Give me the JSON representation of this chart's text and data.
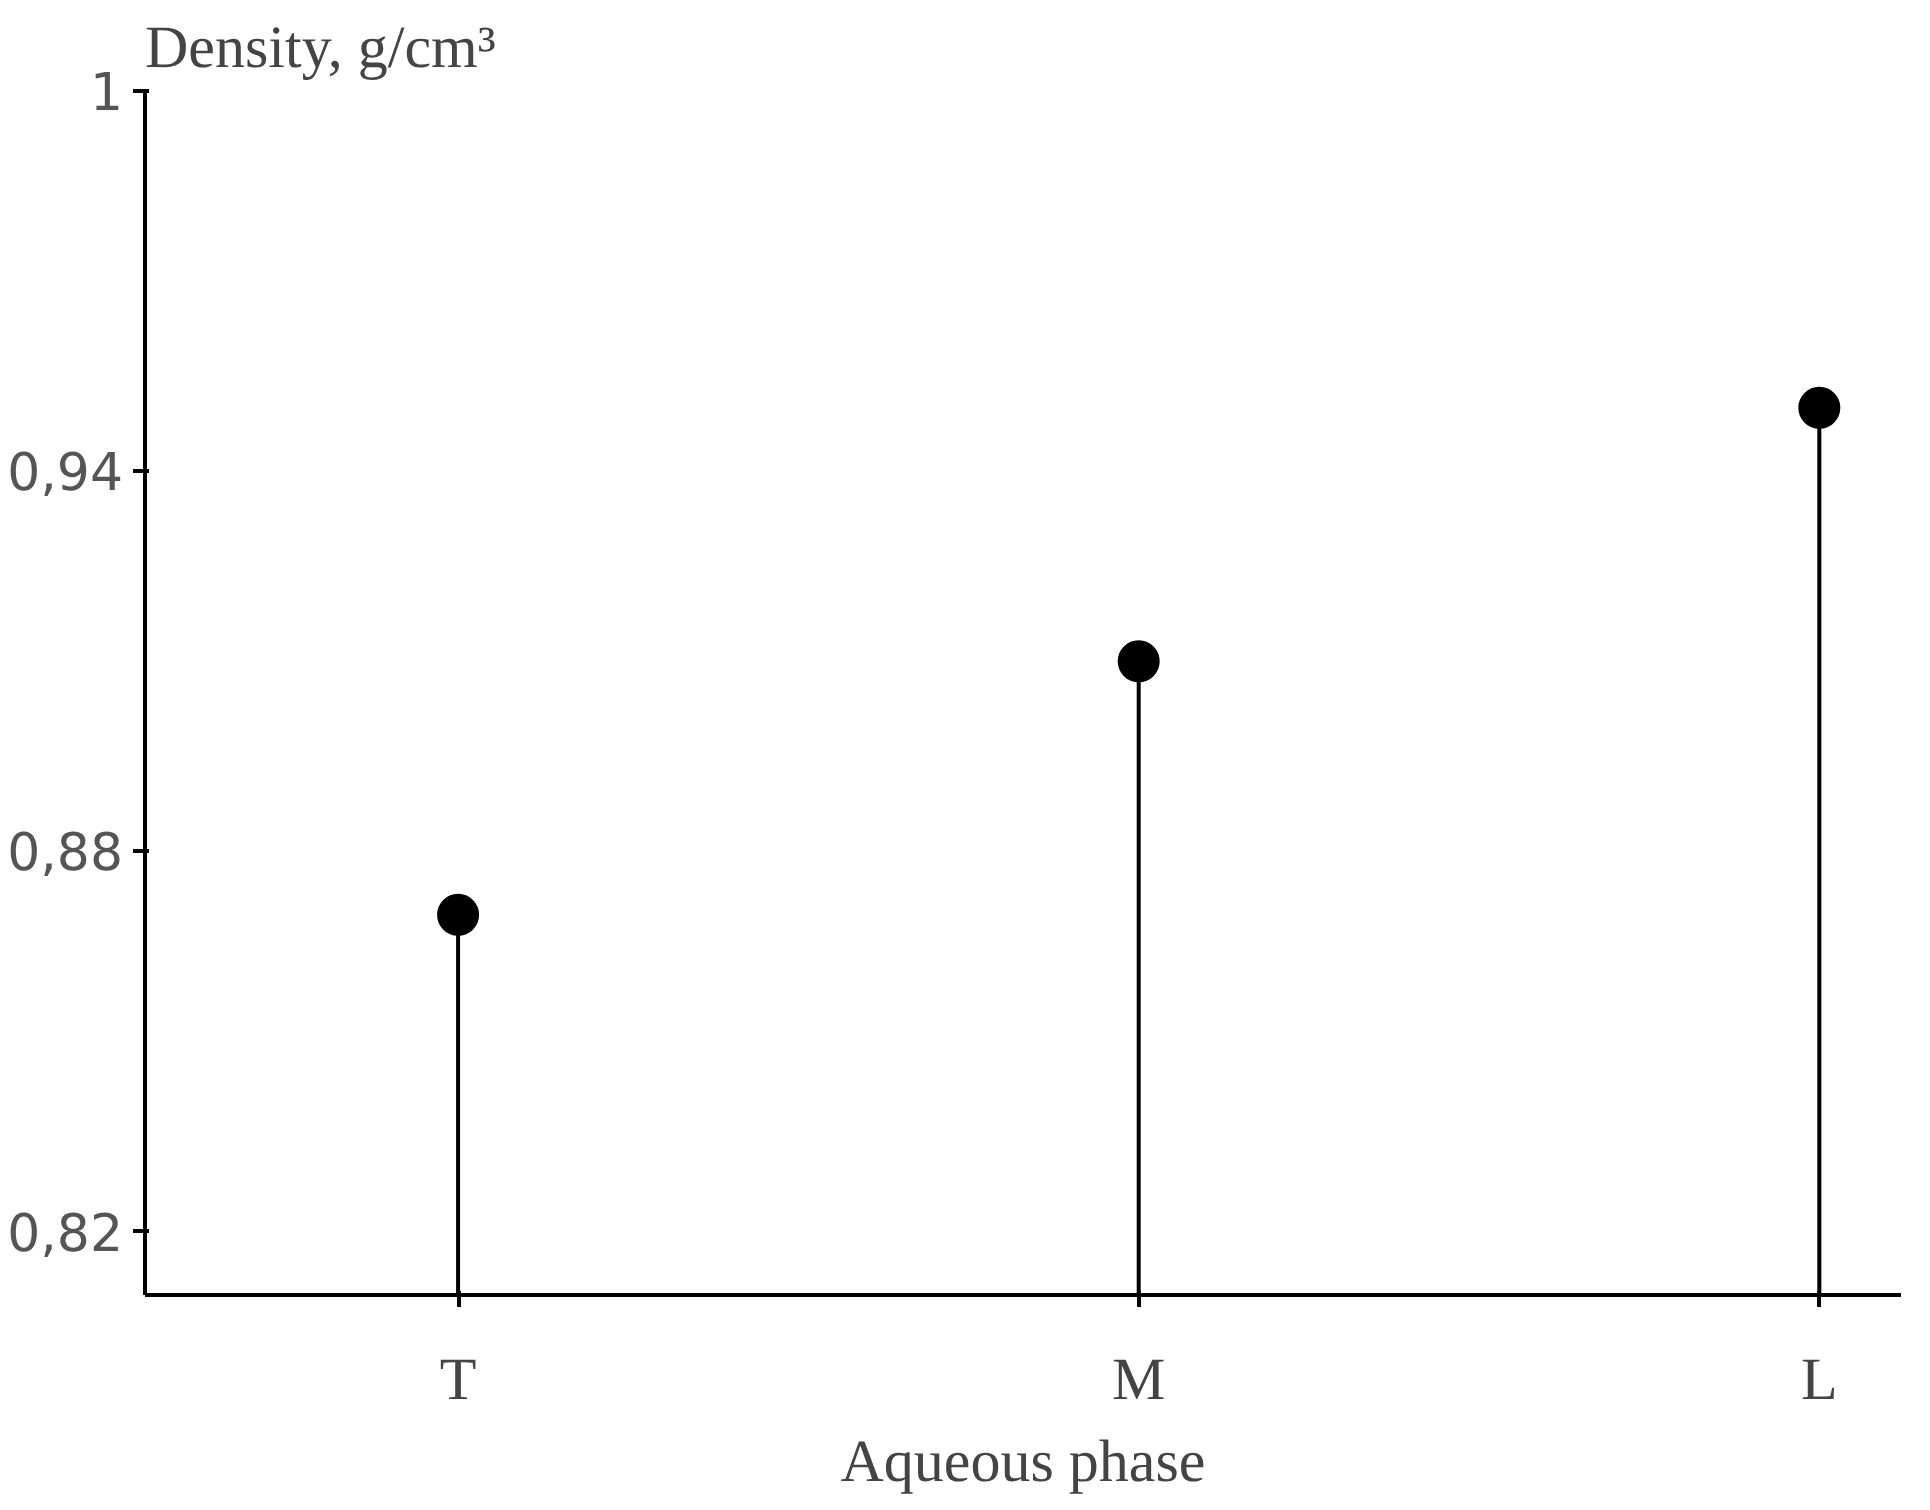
{
  "chart_data": {
    "type": "lollipop",
    "ylabel": "Density, g/cm³",
    "xlabel": "Aqueous phase",
    "categories": [
      "T",
      "M",
      "L"
    ],
    "values": [
      0.87,
      0.91,
      0.95
    ],
    "color": "#000000",
    "marker": "circle",
    "ylim": [
      0.81,
      1.0
    ],
    "yticks": [
      {
        "value": 0.82,
        "label": "0,82"
      },
      {
        "value": 0.88,
        "label": "0,88"
      },
      {
        "value": 0.94,
        "label": "0,94"
      },
      1
    ],
    "tick_labels": "xy"
  }
}
